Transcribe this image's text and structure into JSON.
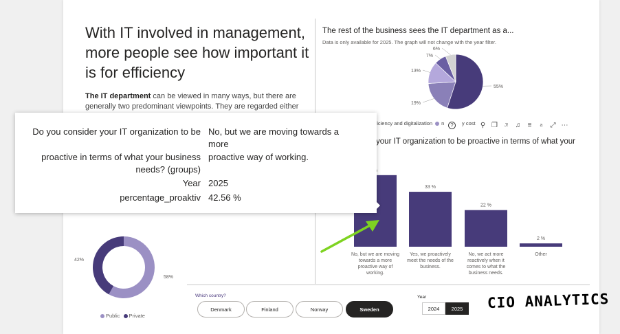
{
  "headline": "With IT involved in management, more people see how important it is for efficiency",
  "intro": {
    "bold": "The IT department",
    "rest": " can be viewed in many ways, but there are generally two predominant viewpoints. They are regarded either"
  },
  "pie_section": {
    "title": "The rest of the business sees the IT department as a...",
    "subtitle": "Data is only available for 2025. The graph will not change with the year filter.",
    "legend_prefix": "efficiency and digitalization",
    "legend_second": "n",
    "legend_third": "y cost"
  },
  "bar_section": {
    "title_line1": "r your IT organization to be proactive in terms of what your",
    "title_line2": ""
  },
  "toolbar": {
    "help_glyph": "?",
    "pin_glyph": "⚲",
    "copy_glyph": "❐",
    "bell_glyph": "♫",
    "filter_glyph": "≡",
    "focus_glyph": "⤢",
    "more_glyph": "⋯",
    "text1": "J!",
    "text2": "a"
  },
  "tooltip": {
    "rows": [
      {
        "label": "Do you consider your IT organization to be",
        "value": "No, but we are moving towards a more"
      },
      {
        "label": "proactive in terms of what your business needs? (groups)",
        "value": "proactive way of working."
      },
      {
        "label": "Year",
        "value": "2025"
      },
      {
        "label": "percentage_proaktiv",
        "value": "42.56 %"
      }
    ]
  },
  "filters": {
    "country_label": "Which country?",
    "countries": [
      "Denmark",
      "Finland",
      "Norway",
      "Sweden"
    ],
    "selected_country": "Sweden",
    "year_label": "Year",
    "years": [
      "2024",
      "2025"
    ],
    "selected_year": "2025"
  },
  "logo_text": "CIO ANALYTICS",
  "colors": {
    "dark_purple": "#473b7a",
    "mid_purple": "#8a80b8",
    "light_purple": "#b4a8dc",
    "pale": "#d3d3d3",
    "arrow_green": "#7ed321"
  },
  "chart_data": [
    {
      "type": "pie",
      "title": "The rest of the business sees the IT department as a...",
      "slices": [
        {
          "label": "55%",
          "value": 55,
          "color": "#473b7a"
        },
        {
          "label": "19%",
          "value": 19,
          "color": "#8a80b8"
        },
        {
          "label": "13%",
          "value": 13,
          "color": "#b4a8dc"
        },
        {
          "label": "7%",
          "value": 7,
          "color": "#6a5fa3"
        },
        {
          "label": "6%",
          "value": 6,
          "color": "#d3d3d3"
        }
      ]
    },
    {
      "type": "bar",
      "categories": [
        "No, but we are moving towards a more proactive way of working.",
        "Yes, we proactively meet the needs of the business.",
        "No, we act more reactively when it comes to what the business needs.",
        "Other"
      ],
      "values": [
        43,
        33,
        22,
        2
      ],
      "labels": [
        "%",
        "33 %",
        "22 %",
        "2 %"
      ],
      "ylim": [
        0,
        45
      ]
    },
    {
      "type": "pie",
      "donut": true,
      "slices": [
        {
          "name": "Public",
          "label": "58%",
          "value": 58,
          "color": "#9b90c4"
        },
        {
          "name": "Private",
          "label": "42%",
          "value": 42,
          "color": "#473b7a"
        }
      ],
      "legend": [
        "Public",
        "Private"
      ]
    }
  ]
}
